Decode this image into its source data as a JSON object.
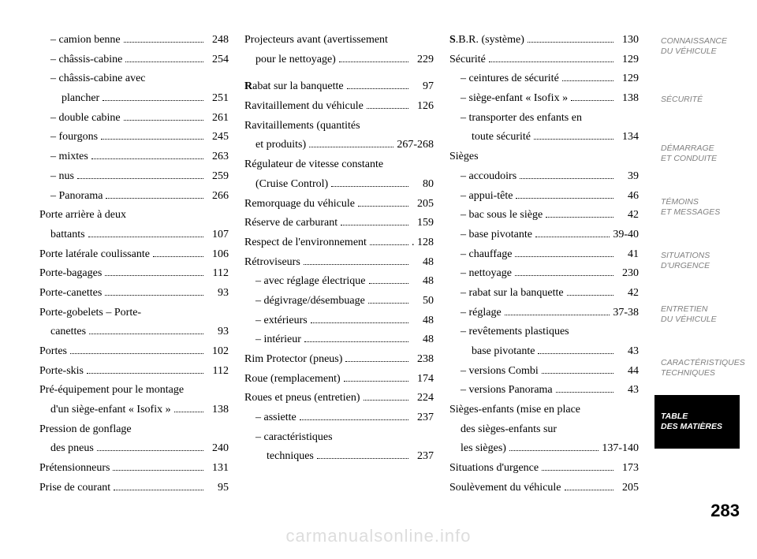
{
  "page_number": "283",
  "watermark": "carmanualsonline.info",
  "tabs": [
    {
      "line1": "CONNAISSANCE",
      "line2": "DU VÉHICULE",
      "active": false
    },
    {
      "line1": "SÉCURITÉ",
      "line2": "",
      "active": false
    },
    {
      "line1": "DÉMARRAGE",
      "line2": "ET CONDUITE",
      "active": false
    },
    {
      "line1": "TÉMOINS",
      "line2": "ET MESSAGES",
      "active": false
    },
    {
      "line1": "SITUATIONS",
      "line2": "D'URGENCE",
      "active": false
    },
    {
      "line1": "ENTRETIEN",
      "line2": "DU VÉHICULE",
      "active": false
    },
    {
      "line1": "CARACTÉRISTIQUES",
      "line2": "TECHNIQUES",
      "active": false
    },
    {
      "line1": "TABLE",
      "line2": "DES MATIÈRES",
      "active": true
    }
  ],
  "col1": [
    {
      "label": "– camion benne",
      "page": "248",
      "sub": true
    },
    {
      "label": "– châssis-cabine",
      "page": "254",
      "sub": true
    },
    {
      "label": "– châssis-cabine avec",
      "page": "",
      "sub": true,
      "nodots": true
    },
    {
      "label": "plancher",
      "page": "251",
      "sub": true,
      "indent2": true
    },
    {
      "label": "– double cabine",
      "page": "261",
      "sub": true
    },
    {
      "label": "– fourgons",
      "page": "245",
      "sub": true
    },
    {
      "label": "– mixtes",
      "page": "263",
      "sub": true
    },
    {
      "label": "– nus",
      "page": "259",
      "sub": true
    },
    {
      "label": "– Panorama",
      "page": "266",
      "sub": true
    },
    {
      "label": "Porte arrière à deux",
      "page": "",
      "nodots": true
    },
    {
      "label": "battants",
      "page": "107",
      "sub": true
    },
    {
      "label": "Porte latérale coulissante",
      "page": "106"
    },
    {
      "label": "Porte-bagages",
      "page": "112"
    },
    {
      "label": "Porte-canettes",
      "page": "93"
    },
    {
      "label": "Porte-gobelets – Porte-",
      "page": "",
      "nodots": true
    },
    {
      "label": "canettes",
      "page": "93",
      "sub": true
    },
    {
      "label": "Portes",
      "page": "102"
    },
    {
      "label": "Porte-skis",
      "page": "112"
    },
    {
      "label": "Pré-équipement pour le montage",
      "page": "",
      "nodots": true
    },
    {
      "label": "d'un siège-enfant « Isofix »",
      "page": "138",
      "sub": true
    },
    {
      "label": "Pression de gonflage",
      "page": "",
      "nodots": true
    },
    {
      "label": "des pneus",
      "page": "240",
      "sub": true
    },
    {
      "label": "Prétensionneurs",
      "page": "131"
    },
    {
      "label": "Prise de courant",
      "page": "95"
    }
  ],
  "col2": [
    {
      "label": "Projecteurs avant (avertissement",
      "page": "",
      "nodots": true
    },
    {
      "label": "pour le nettoyage)",
      "page": "229",
      "sub": true
    },
    {
      "label": "",
      "page": "",
      "spacer": true
    },
    {
      "label": "abat sur la banquette",
      "page": "97",
      "cap": "R"
    },
    {
      "label": "Ravitaillement du véhicule",
      "page": "126"
    },
    {
      "label": "Ravitaillements (quantités",
      "page": "",
      "nodots": true
    },
    {
      "label": "et produits)",
      "page": "267-268",
      "sub": true
    },
    {
      "label": "Régulateur de vitesse constante",
      "page": "",
      "nodots": true
    },
    {
      "label": "(Cruise Control)",
      "page": "80",
      "sub": true
    },
    {
      "label": "Remorquage du véhicule",
      "page": "205"
    },
    {
      "label": "Réserve de carburant",
      "page": "159"
    },
    {
      "label": "Respect de l'environnement",
      "page": ". 128",
      "nodots_special": true
    },
    {
      "label": "Rétroviseurs",
      "page": "48"
    },
    {
      "label": "– avec réglage électrique",
      "page": "48",
      "sub": true
    },
    {
      "label": "– dégivrage/désembuage",
      "page": "50",
      "sub": true
    },
    {
      "label": "– extérieurs",
      "page": "48",
      "sub": true
    },
    {
      "label": "– intérieur",
      "page": "48",
      "sub": true
    },
    {
      "label": "Rim Protector (pneus)",
      "page": "238"
    },
    {
      "label": "Roue (remplacement)",
      "page": "174"
    },
    {
      "label": "Roues et pneus (entretien)",
      "page": "224"
    },
    {
      "label": "– assiette",
      "page": "237",
      "sub": true
    },
    {
      "label": "– caractéristiques",
      "page": "",
      "sub": true,
      "nodots": true
    },
    {
      "label": "techniques",
      "page": "237",
      "sub": true,
      "indent2": true
    }
  ],
  "col3": [
    {
      "label": ".B.R. (système)",
      "page": "130",
      "cap": "S"
    },
    {
      "label": "Sécurité",
      "page": "129"
    },
    {
      "label": "– ceintures de sécurité",
      "page": "129",
      "sub": true
    },
    {
      "label": "– siège-enfant « Isofix »",
      "page": "138",
      "sub": true
    },
    {
      "label": "– transporter des enfants en",
      "page": "",
      "sub": true,
      "nodots": true
    },
    {
      "label": "toute sécurité",
      "page": "134",
      "sub": true,
      "indent2": true
    },
    {
      "label": "Sièges",
      "page": "",
      "nodots": true
    },
    {
      "label": "– accoudoirs",
      "page": "39",
      "sub": true
    },
    {
      "label": "– appui-tête",
      "page": "46",
      "sub": true
    },
    {
      "label": "– bac sous le siège",
      "page": "42",
      "sub": true
    },
    {
      "label": "– base pivotante",
      "page": "39-40",
      "sub": true
    },
    {
      "label": "– chauffage",
      "page": "41",
      "sub": true
    },
    {
      "label": "– nettoyage",
      "page": "230",
      "sub": true
    },
    {
      "label": "– rabat sur la banquette",
      "page": "42",
      "sub": true
    },
    {
      "label": "– réglage",
      "page": "37-38",
      "sub": true
    },
    {
      "label": "– revêtements plastiques",
      "page": "",
      "sub": true,
      "nodots": true
    },
    {
      "label": "base pivotante",
      "page": "43",
      "sub": true,
      "indent2": true
    },
    {
      "label": "– versions Combi",
      "page": "44",
      "sub": true
    },
    {
      "label": "– versions Panorama",
      "page": "43",
      "sub": true
    },
    {
      "label": "Sièges-enfants (mise en place",
      "page": "",
      "nodots": true
    },
    {
      "label": "des sièges-enfants sur",
      "page": "",
      "sub": true,
      "nodots": true
    },
    {
      "label": "les sièges)",
      "page": "137-140",
      "sub": true
    },
    {
      "label": "Situations d'urgence",
      "page": "173"
    },
    {
      "label": "Soulèvement du véhicule",
      "page": "205"
    }
  ]
}
